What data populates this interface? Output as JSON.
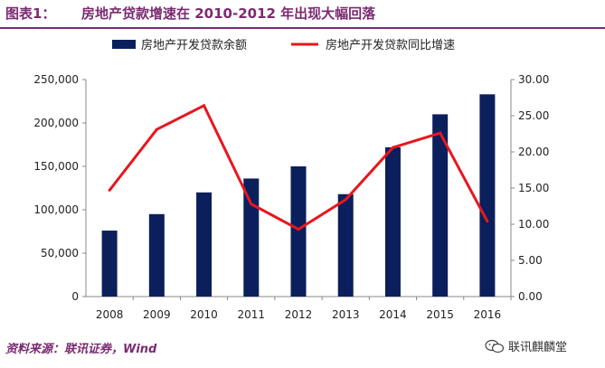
{
  "figure": {
    "label": "图表1：",
    "title": "房地产贷款增速在 2010-2012 年出现大幅回落",
    "source": "资料来源：联讯证券，Wind",
    "watermark": "联讯麒麟堂"
  },
  "chart_data": {
    "type": "bar",
    "categories": [
      "2008",
      "2009",
      "2010",
      "2011",
      "2012",
      "2013",
      "2014",
      "2015",
      "2016"
    ],
    "series": [
      {
        "name": "房地产开发贷款余额",
        "type": "bar",
        "axis": "left",
        "color": "#0b1f5c",
        "values": [
          76000,
          95000,
          120000,
          136000,
          150000,
          118000,
          172000,
          210000,
          233000
        ]
      },
      {
        "name": "房地产开发贷款同比增速",
        "type": "line",
        "axis": "right",
        "color": "#e8171e",
        "values": [
          14.7,
          23.1,
          26.4,
          12.8,
          9.3,
          13.4,
          20.6,
          22.6,
          10.4
        ]
      }
    ],
    "y_left": {
      "min": 0,
      "max": 250000,
      "ticks": [
        "0",
        "50,000",
        "100,000",
        "150,000",
        "200,000",
        "250,000"
      ]
    },
    "y_right": {
      "min": 0,
      "max": 30,
      "ticks": [
        "0.00",
        "5.00",
        "10.00",
        "15.00",
        "20.00",
        "25.00",
        "30.00"
      ]
    },
    "legend_position": "top",
    "grid": false
  }
}
